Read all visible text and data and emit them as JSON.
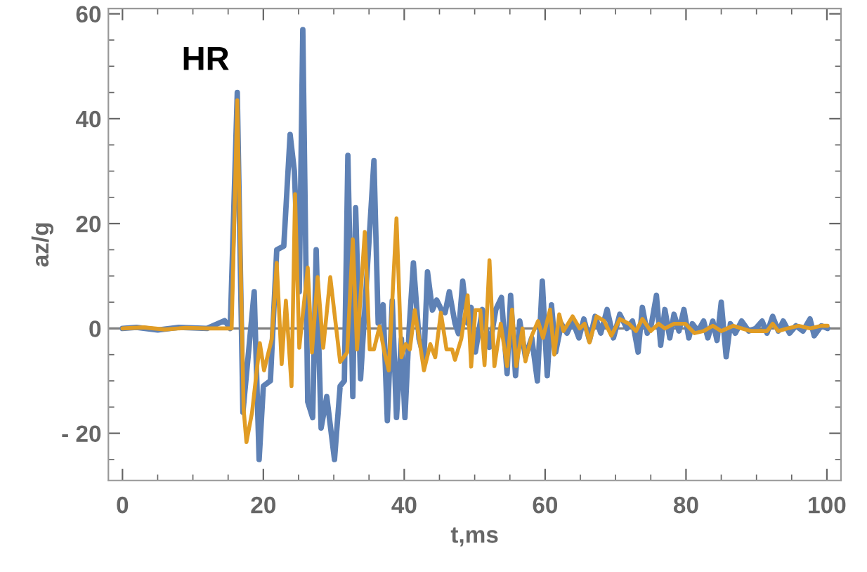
{
  "chart_data": {
    "type": "line",
    "xlabel": "t,ms",
    "ylabel": "az/g",
    "annotations": [
      "HR"
    ],
    "xlim": [
      -2,
      102
    ],
    "ylim": [
      -29,
      61
    ],
    "xticks": [
      0,
      {
        "value": 5,
        "label": null
      },
      {
        "value": 10,
        "label": null
      },
      {
        "value": 15,
        "label": null
      },
      20,
      {
        "value": 25,
        "label": null
      },
      {
        "value": 30,
        "label": null
      },
      {
        "value": 35,
        "label": null
      },
      40,
      {
        "value": 45,
        "label": null
      },
      {
        "value": 50,
        "label": null
      },
      {
        "value": 55,
        "label": null
      },
      60,
      {
        "value": 65,
        "label": null
      },
      {
        "value": 70,
        "label": null
      },
      {
        "value": 75,
        "label": null
      },
      80,
      {
        "value": 85,
        "label": null
      },
      {
        "value": 90,
        "label": null
      },
      {
        "value": 95,
        "label": null
      },
      100
    ],
    "yticks": [
      {
        "value": -25,
        "label": null
      },
      {
        "value": -20,
        "label": "- 20"
      },
      {
        "value": -15,
        "label": null
      },
      {
        "value": -10,
        "label": null
      },
      {
        "value": -5,
        "label": null
      },
      0,
      {
        "value": 5,
        "label": null
      },
      {
        "value": 10,
        "label": null
      },
      {
        "value": 15,
        "label": null
      },
      20,
      {
        "value": 25,
        "label": null
      },
      {
        "value": 30,
        "label": null
      },
      {
        "value": 35,
        "label": null
      },
      40,
      {
        "value": 45,
        "label": null
      },
      {
        "value": 50,
        "label": null
      },
      {
        "value": 55,
        "label": null
      },
      60
    ],
    "ref_lines": [
      {
        "axis": "y",
        "value": 0,
        "color": "#808080"
      }
    ],
    "grid": false,
    "legend": false,
    "marker": "none",
    "line_style": "solid",
    "series": [
      {
        "color": "#5e81b5",
        "x": [
          0,
          2,
          5,
          8,
          12,
          14.5,
          15.3,
          16.3,
          17.1,
          18.7,
          19.4,
          20,
          21,
          21.9,
          22.9,
          23.8,
          24.4,
          25.1,
          25.6,
          26.3,
          27,
          27.5,
          28.2,
          29,
          30.1,
          30.9,
          31.5,
          32,
          32.7,
          33.1,
          33.8,
          35.7,
          36.3,
          37,
          37.6,
          38.3,
          38.9,
          39.6,
          40.1,
          40.7,
          41.3,
          42.1,
          42.8,
          43.3,
          44,
          44.6,
          45.3,
          45.8,
          46.4,
          47.2,
          47.7,
          48.3,
          49,
          49.5,
          50.1,
          51.1,
          52.1,
          53,
          53.8,
          54.6,
          55.1,
          55.8,
          56.4,
          57.2,
          58.1,
          58.9,
          59.6,
          60.3,
          60.9,
          61.5,
          62.3,
          63.1,
          63.9,
          64.8,
          65.5,
          66.3,
          67.1,
          67.9,
          68.8,
          69.7,
          70.6,
          71.6,
          72.4,
          73.2,
          73.8,
          74.5,
          75.1,
          75.8,
          76.4,
          77,
          77.7,
          78.3,
          79,
          79.7,
          80.4,
          80.9,
          81.7,
          82.5,
          83.1,
          83.8,
          84.4,
          85,
          85.7,
          86.3,
          87,
          87.9,
          88.9,
          89.9,
          90.8,
          91.5,
          92.3,
          93.1,
          93.8,
          94.7,
          95.6,
          96.6,
          97.6,
          98.2,
          99.2,
          100.1
        ],
        "values": [
          0,
          0.2,
          -0.3,
          0.2,
          0,
          1.5,
          0,
          45,
          -16,
          7,
          -25,
          -11,
          -10,
          15,
          15.7,
          37,
          30,
          7,
          57,
          -14,
          -17,
          15,
          -19,
          -13,
          -25,
          -11,
          -10,
          33,
          -13,
          23,
          -9.6,
          32,
          1,
          4.5,
          -17.6,
          5.3,
          -17,
          -2,
          -17,
          0,
          12.5,
          -2,
          -5.5,
          10.8,
          3.5,
          5.4,
          3.5,
          3,
          7,
          1,
          -1,
          9,
          1,
          4,
          -4.5,
          3.6,
          -3.6,
          3.6,
          5.9,
          -8.6,
          6.3,
          -9,
          1.4,
          -5.4,
          -1.8,
          -10,
          9,
          -9,
          4.5,
          -4.5,
          0.9,
          -0.9,
          1.4,
          -1.8,
          1.8,
          -2.3,
          2.3,
          -0.9,
          3.6,
          -1.8,
          2.7,
          0,
          1.4,
          -4.5,
          4,
          -0.9,
          0.9,
          6.3,
          -3.2,
          3.6,
          -1.8,
          2.7,
          -0.5,
          3.6,
          -1.8,
          0.9,
          -0.5,
          1.4,
          -1.8,
          1.4,
          -2.3,
          5,
          -5.4,
          0.9,
          -0.9,
          1.4,
          -0.5,
          0,
          1.4,
          -0.9,
          2.3,
          -0.5,
          1.4,
          -0.9,
          0.5,
          -0.5,
          1.8,
          -1.4,
          0.5,
          0
        ]
      },
      {
        "color": "#e19c24",
        "x": [
          0,
          3,
          6,
          9,
          12,
          15.5,
          16.3,
          17.2,
          17.6,
          18.4,
          19.5,
          20.1,
          21.2,
          21.9,
          22.6,
          23.2,
          24,
          24.5,
          25.1,
          26.3,
          26.9,
          27.7,
          28.5,
          29.5,
          30.9,
          31.9,
          32.7,
          33.3,
          34.4,
          35.1,
          35.7,
          36.5,
          37.2,
          37.8,
          38.9,
          39.6,
          40.2,
          40.8,
          41.5,
          42.8,
          43.7,
          44.4,
          45.2,
          46,
          46.8,
          47.2,
          48.1,
          49,
          49.5,
          50.1,
          50.8,
          51.4,
          52.1,
          52.8,
          53.7,
          54.6,
          55.3,
          55.9,
          56.8,
          57.2,
          58.1,
          59,
          59.7,
          60.7,
          61.3,
          62,
          62.6,
          63.9,
          64.9,
          65.6,
          66.3,
          67.3,
          68.4,
          69.4,
          70.6,
          71.9,
          72.9,
          73.8,
          75,
          76.1,
          77,
          78.3,
          79.9,
          81.2,
          82.5,
          83.8,
          85,
          86.7,
          87.9,
          89.2,
          90.5,
          91.5,
          92.3,
          93.1,
          94.4,
          96,
          97.6,
          99.2,
          100.1
        ],
        "values": [
          0,
          0.2,
          -0.2,
          0.1,
          0,
          0,
          43.5,
          -15.4,
          -21.7,
          -16,
          -2.8,
          -8,
          -2,
          12.5,
          -6.8,
          5.3,
          -11,
          25.6,
          -3.7,
          11.6,
          -4.6,
          9.8,
          -3.7,
          9.8,
          -6.4,
          -4.6,
          17,
          -4,
          18.4,
          -4,
          -4,
          0.4,
          -4.6,
          -8,
          21,
          -5.5,
          -3,
          -4,
          3.5,
          -8,
          -3,
          -5.5,
          3,
          -4,
          -4,
          -6,
          -2,
          6.3,
          -7.3,
          3.5,
          3.5,
          -7,
          13,
          -7.2,
          0.9,
          -7.2,
          3.6,
          -7.2,
          0,
          -6.3,
          -1.4,
          1.4,
          -1.8,
          3.6,
          -5,
          2.7,
          -0.5,
          2.3,
          0,
          0.9,
          -2.7,
          2.3,
          1.4,
          -1.4,
          1.8,
          0.9,
          -0.5,
          1.8,
          -0.5,
          0.9,
          0,
          0.9,
          0.9,
          -0.9,
          -0.5,
          0.5,
          -0.5,
          0.5,
          0,
          -0.5,
          -0.5,
          -0.5,
          0.9,
          -0.5,
          0,
          0.5,
          0,
          0.5,
          0.5
        ]
      }
    ]
  }
}
